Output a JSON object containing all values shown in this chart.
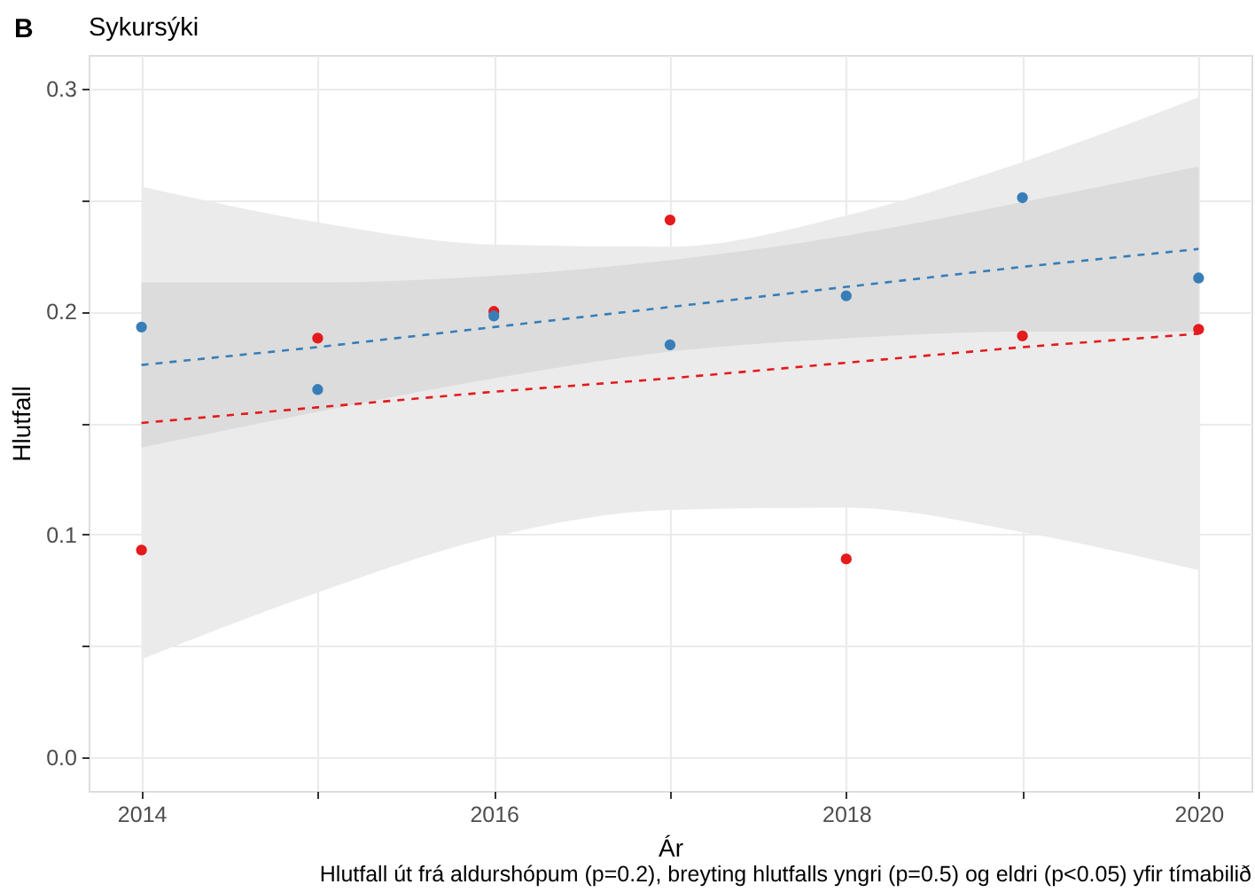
{
  "chart_data": {
    "type": "scatter",
    "title": "Sykursýki",
    "xlabel": "Ár",
    "ylabel": "Hlutfall",
    "annotations": [
      "B",
      "Hlutfall út frá aldurshópum (p=0.2), breyting hlutfalls yngri (p=0.5) og eldri (p<0.05) yfir tímabilið"
    ],
    "x": [
      2014,
      2015,
      2016,
      2017,
      2018,
      2019,
      2020
    ],
    "series": [
      {
        "color": "#e41a1c",
        "marker": "circle",
        "values": [
          0.093,
          0.188,
          0.2,
          0.241,
          0.089,
          0.189,
          0.192
        ]
      },
      {
        "color": "#377eb8",
        "marker": "circle",
        "values": [
          0.193,
          0.165,
          0.198,
          0.185,
          0.207,
          0.251,
          0.215
        ]
      },
      {
        "type": "line",
        "color": "#e41a1c",
        "line_style": "dashed",
        "values": [
          0.15,
          0.157,
          0.164,
          0.17,
          0.177,
          0.184,
          0.19
        ],
        "lower": [
          0.044,
          0.074,
          0.099,
          0.111,
          0.112,
          0.101,
          0.084
        ],
        "upper": [
          0.256,
          0.24,
          0.23,
          0.229,
          0.243,
          0.267,
          0.296
        ]
      },
      {
        "type": "line",
        "color": "#377eb8",
        "line_style": "dashed",
        "values": [
          0.176,
          0.184,
          0.193,
          0.202,
          0.211,
          0.22,
          0.228
        ],
        "lower": [
          0.139,
          0.155,
          0.17,
          0.182,
          0.188,
          0.191,
          0.191
        ],
        "upper": [
          0.213,
          0.213,
          0.216,
          0.223,
          0.234,
          0.249,
          0.265
        ]
      }
    ],
    "xlim": [
      2013.7,
      2020.3
    ],
    "xticks": [
      2014,
      {
        "value": 2015,
        "label": null
      },
      2016,
      {
        "value": 2017,
        "label": null
      },
      2018,
      {
        "value": 2019,
        "label": null
      },
      2020
    ],
    "ylim": [
      -0.015,
      0.315
    ],
    "yticks": [
      {
        "value": 0,
        "label": "0.0"
      },
      {
        "value": 0.05,
        "label": null
      },
      0.1,
      {
        "value": 0.15,
        "label": null
      },
      0.2,
      {
        "value": 0.25,
        "label": null
      },
      0.3
    ],
    "grid": true
  }
}
